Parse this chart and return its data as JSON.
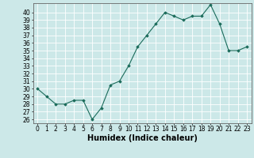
{
  "x": [
    0,
    1,
    2,
    3,
    4,
    5,
    6,
    7,
    8,
    9,
    10,
    11,
    12,
    13,
    14,
    15,
    16,
    17,
    18,
    19,
    20,
    21,
    22,
    23
  ],
  "y": [
    30,
    29,
    28,
    28,
    28.5,
    28.5,
    26,
    27.5,
    30.5,
    31,
    33,
    35.5,
    37,
    38.5,
    40,
    39.5,
    39,
    39.5,
    39.5,
    41,
    38.5,
    35,
    35,
    35.5
  ],
  "line_color": "#1a6b5a",
  "marker_color": "#1a6b5a",
  "bg_color": "#cce8e8",
  "grid_color": "#ffffff",
  "xlabel": "Humidex (Indice chaleur)",
  "xlabel_fontsize": 7,
  "tick_fontsize": 5.5,
  "ylim": [
    25.5,
    41.2
  ],
  "xlim": [
    -0.5,
    23.5
  ],
  "yticks": [
    26,
    27,
    28,
    29,
    30,
    31,
    32,
    33,
    34,
    35,
    36,
    37,
    38,
    39,
    40
  ],
  "xticks": [
    0,
    1,
    2,
    3,
    4,
    5,
    6,
    7,
    8,
    9,
    10,
    11,
    12,
    13,
    14,
    15,
    16,
    17,
    18,
    19,
    20,
    21,
    22,
    23
  ]
}
